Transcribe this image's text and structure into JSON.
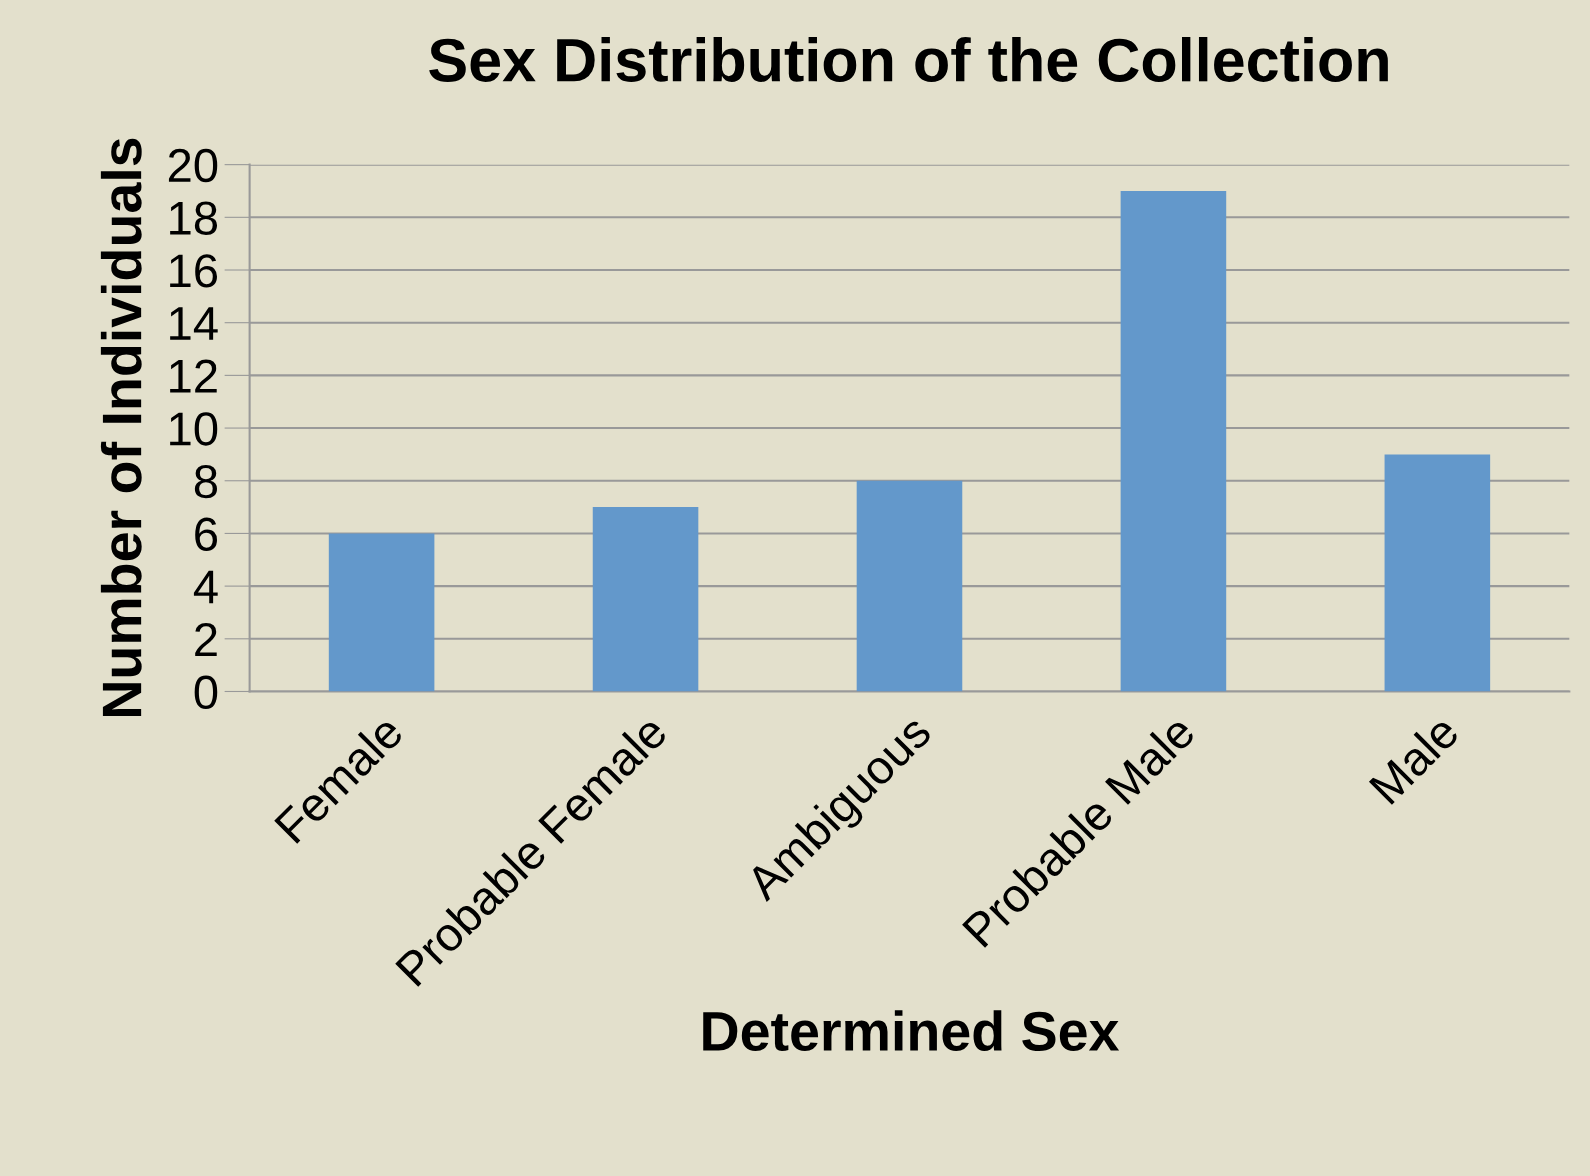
{
  "chart_data": {
    "type": "bar",
    "title": "Sex Distribution of the Collection",
    "xlabel": "Determined Sex",
    "ylabel": "Number of Individuals",
    "categories": [
      "Female",
      "Probable Female",
      "Ambiguous",
      "Probable Male",
      "Male"
    ],
    "values": [
      6,
      7,
      8,
      19,
      9
    ],
    "color": "#6398cb",
    "ylim": [
      0,
      20
    ],
    "yticks": [
      0,
      2,
      4,
      6,
      8,
      10,
      12,
      14,
      16,
      18,
      20
    ],
    "grid": "y"
  }
}
